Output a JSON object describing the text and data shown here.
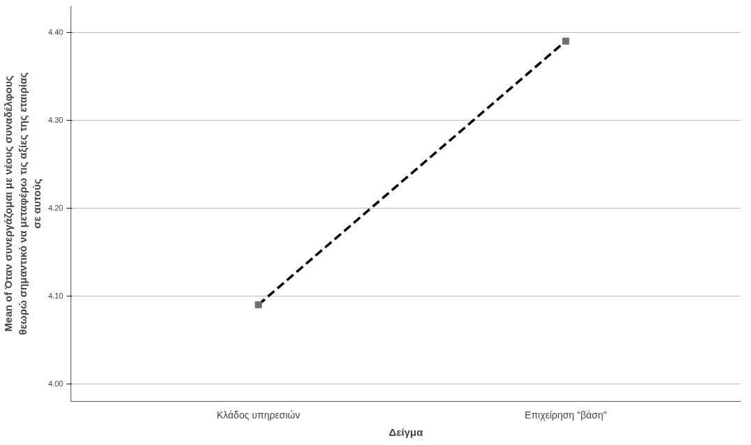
{
  "chart_data": {
    "type": "line",
    "categories": [
      "Κλάδος υπηρεσιών",
      "Επιχείρηση \"βάση\""
    ],
    "series": [
      {
        "color": "#000000",
        "values": [
          4.09,
          4.39
        ]
      }
    ],
    "xlabel": "Δείγμα",
    "ylabel": "Mean of Όταν συνεργάζομαι με νέους συναδέλφους θεωρώ σημαντικό να μεταφέρω τις αξίες της εταιρίας σε αυτούς",
    "ylim": [
      3.98,
      4.43
    ],
    "yticks": [
      {
        "value": 4.0,
        "label": "4.00"
      },
      {
        "value": 4.1,
        "label": "4.10"
      },
      {
        "value": 4.2,
        "label": "4.20"
      },
      {
        "value": 4.3,
        "label": "4.30"
      },
      {
        "value": 4.4,
        "label": "4.40"
      }
    ],
    "grid": "y",
    "marker": "square",
    "line_style": "dashed"
  }
}
